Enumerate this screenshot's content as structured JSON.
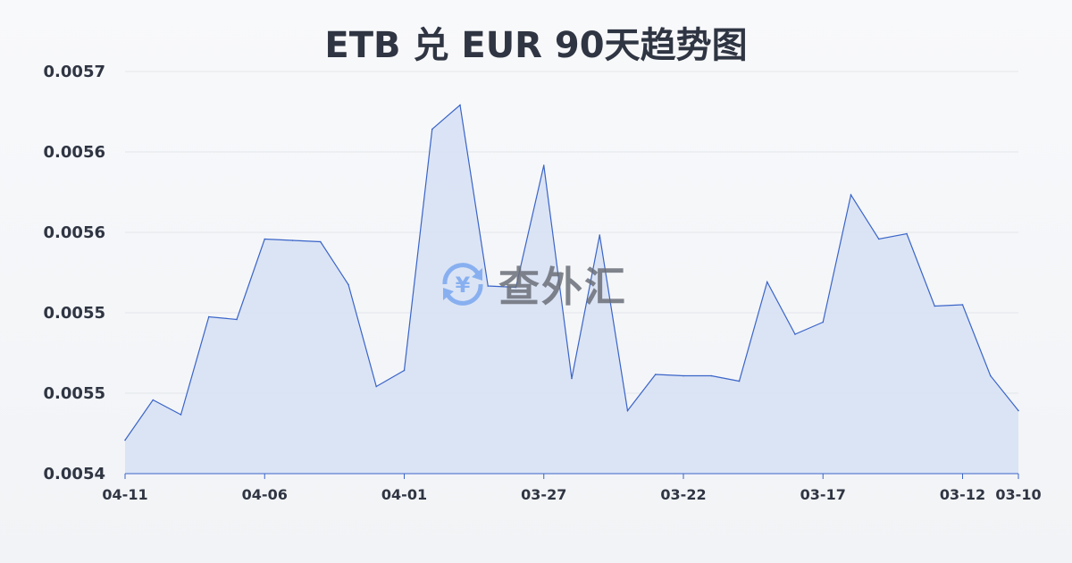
{
  "chart_data": {
    "type": "area",
    "title": "ETB 兑 EUR 90天趋势图",
    "xlabel": "",
    "ylabel": "",
    "ylim": [
      0.0054,
      0.0057
    ],
    "yticks": [
      0.0054,
      0.00546,
      0.00552,
      0.00558,
      0.00564,
      0.0057
    ],
    "ytick_labels": [
      "0.0054",
      "0.0055",
      "0.0055",
      "0.0056",
      "0.0056",
      "0.0057"
    ],
    "grid": true,
    "x": [
      "04-11",
      "04-10",
      "04-09",
      "04-08",
      "04-07",
      "04-06",
      "04-05",
      "04-04",
      "04-03",
      "04-02",
      "04-01",
      "03-31",
      "03-30",
      "03-29",
      "03-28",
      "03-27",
      "03-26",
      "03-25",
      "03-24",
      "03-23",
      "03-22",
      "03-21",
      "03-20",
      "03-19",
      "03-18",
      "03-17",
      "03-16",
      "03-15",
      "03-14",
      "03-13",
      "03-12",
      "03-11",
      "03-10"
    ],
    "xtick_labels": [
      "04-11",
      "04-06",
      "04-01",
      "03-27",
      "03-22",
      "03-17",
      "03-12",
      "03-10"
    ],
    "values": [
      0.005425,
      0.005455,
      0.005444,
      0.005517,
      0.005515,
      0.005575,
      0.005574,
      0.005573,
      0.005541,
      0.005465,
      0.005477,
      0.005657,
      0.005675,
      0.00554,
      0.005539,
      0.00563,
      0.005471,
      0.005578,
      0.005447,
      0.005474,
      0.005473,
      0.005473,
      0.005469,
      0.005543,
      0.005504,
      0.005513,
      0.005608,
      0.005575,
      0.005579,
      0.005525,
      0.005526,
      0.005473,
      0.005447
    ],
    "colors": {
      "line": "#3a64c8",
      "fill": "#d6e0f5",
      "grid": "#e3e6eb"
    }
  },
  "watermark": {
    "text": "查外汇",
    "icon": "yen-exchange-icon",
    "color": "#7aa7f0"
  }
}
